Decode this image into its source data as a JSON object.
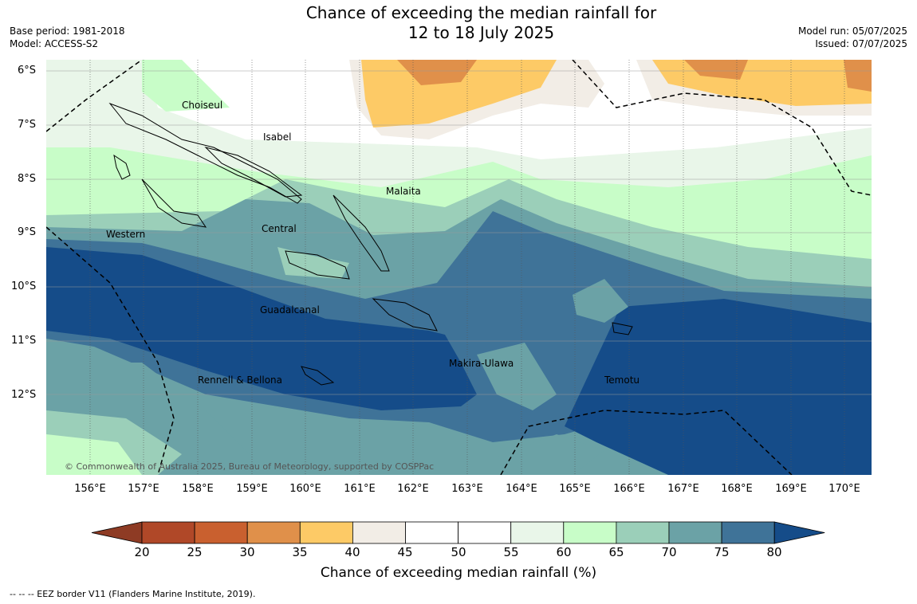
{
  "title_line1": "Chance of exceeding the median rainfall for",
  "title_line2": "12 to 18 July 2025",
  "base_period": "Base period: 1981-2018",
  "model": "Model: ACCESS-S2",
  "model_run": "Model run: 05/07/2025",
  "issued": "Issued: 07/07/2025",
  "copyright": "© Commonwealth of Australia 2025, Bureau of Meteorology, supported by COSPPac",
  "eez_note": "-- -- -- EEZ border V11 (Flanders Marine Institute, 2019).",
  "colorbar_title": "Chance of exceeding median rainfall (%)",
  "colorbar_ticks": [
    "20",
    "25",
    "30",
    "35",
    "40",
    "45",
    "50",
    "55",
    "60",
    "65",
    "70",
    "75",
    "80"
  ],
  "colorbar_colors": [
    "#b04828",
    "#c9602f",
    "#e0904a",
    "#fdca66",
    "#f2ede6",
    "#ffffff",
    "#ffffff",
    "#e9f6e9",
    "#c8fdc8",
    "#9bcfb9",
    "#6ba2a6",
    "#3f7398"
  ],
  "colorbar_low_color": "#8e3b24",
  "colorbar_high_color": "#154c89",
  "lat_labels": [
    "6°S",
    "7°S",
    "8°S",
    "9°S",
    "10°S",
    "11°S",
    "12°S"
  ],
  "lon_labels": [
    "156°E",
    "157°E",
    "158°E",
    "159°E",
    "160°E",
    "161°E",
    "162°E",
    "163°E",
    "164°E",
    "165°E",
    "166°E",
    "167°E",
    "168°E",
    "169°E",
    "170°E"
  ],
  "place_labels": [
    "Choiseul",
    "Isabel",
    "Malaita",
    "Western",
    "Central",
    "Guadalcanal",
    "Makira-Ulawa",
    "Rennell & Bellona",
    "Temotu"
  ]
}
